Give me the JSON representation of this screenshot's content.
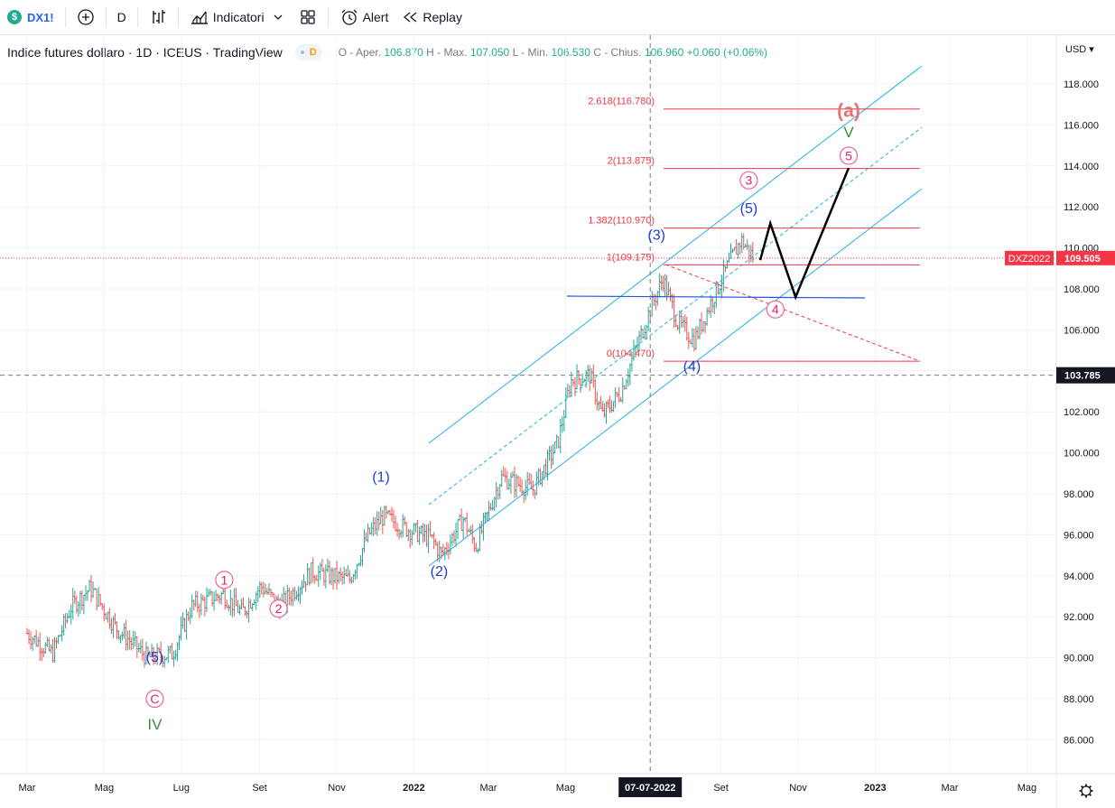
{
  "toolbar": {
    "symbol": "DX1!",
    "symbol_icon_text": "$",
    "interval": "D",
    "indicators_label": "Indicatori",
    "alert_label": "Alert",
    "replay_label": "Replay"
  },
  "legend": {
    "title": "Indice futures dollaro · 1D · ICEUS · TradingView",
    "interval_badge": "D",
    "open_label": "O - Aper.",
    "open": "106.870",
    "high_label": "H - Max.",
    "high": "107.050",
    "low_label": "L - Min.",
    "low": "106.530",
    "close_label": "C - Chius.",
    "close": "106.960",
    "change": "+0.060",
    "change_pct": "(+0.06%)"
  },
  "currency": "USD",
  "y_ticks": [
    "118.000",
    "116.000",
    "114.000",
    "112.000",
    "110.000",
    "108.000",
    "106.000",
    "104.000",
    "102.000",
    "100.000",
    "98.000",
    "96.000",
    "94.000",
    "92.000",
    "90.000",
    "88.000",
    "86.000"
  ],
  "y_tick_values": [
    118,
    116,
    114,
    112,
    110,
    108,
    106,
    104,
    102,
    100,
    98,
    96,
    94,
    92,
    90,
    88,
    86
  ],
  "x_ticks": [
    {
      "label": "Mar",
      "day": 0
    },
    {
      "label": "Mag",
      "day": 61
    },
    {
      "label": "Lug",
      "day": 122
    },
    {
      "label": "Set",
      "day": 184
    },
    {
      "label": "Nov",
      "day": 245
    },
    {
      "label": "2022",
      "day": 306
    },
    {
      "label": "Mar",
      "day": 365
    },
    {
      "label": "Mag",
      "day": 426
    },
    {
      "label": "Set",
      "day": 549
    },
    {
      "label": "Nov",
      "day": 610
    },
    {
      "label": "2023",
      "day": 671
    },
    {
      "label": "Mar",
      "day": 730
    },
    {
      "label": "Mag",
      "day": 791
    }
  ],
  "crosshair": {
    "date_label": "07-07-2022",
    "date_day": 493,
    "price_label": "103.785",
    "price": 103.785
  },
  "price_tag": {
    "name": "DXZ2022",
    "value": "109.505",
    "price": 109.505
  },
  "fib_levels": [
    {
      "label": "2.618(116.780)",
      "price": 116.78
    },
    {
      "label": "2(113.875)",
      "price": 113.875
    },
    {
      "label": "1.382(110.970)",
      "price": 110.97
    },
    {
      "label": "1(109.175)",
      "price": 109.175
    },
    {
      "label": "0(104.470)",
      "price": 104.47
    }
  ],
  "wave_labels": {
    "blue": [
      {
        "text": "(1)",
        "day": 280,
        "price": 98.6
      },
      {
        "text": "(2)",
        "day": 326,
        "price": 94.0
      },
      {
        "text": "(3)",
        "day": 498,
        "price": 110.4
      },
      {
        "text": "(4)",
        "day": 526,
        "price": 104.0
      },
      {
        "text": "(5)",
        "day": 571,
        "price": 111.7
      },
      {
        "text": "(5)",
        "day": 101,
        "price": 89.8
      }
    ],
    "pink": [
      {
        "text": "1",
        "day": 156,
        "price": 93.8
      },
      {
        "text": "2",
        "day": 199,
        "price": 92.4
      },
      {
        "text": "3",
        "day": 571,
        "price": 113.3
      },
      {
        "text": "4",
        "day": 592,
        "price": 107.0
      },
      {
        "text": "5",
        "day": 650,
        "price": 114.5
      },
      {
        "text": "C",
        "day": 101,
        "price": 88.0
      }
    ],
    "green": [
      {
        "text": "IV",
        "day": 101,
        "price": 86.5
      },
      {
        "text": "V",
        "day": 650,
        "price": 115.4
      }
    ],
    "red_big": [
      {
        "text": "(a)",
        "day": 650,
        "price": 116.4
      }
    ]
  },
  "colors": {
    "up": "#26a69a",
    "down": "#ef5350",
    "channel": "#22b1e6",
    "fib": "#f23645",
    "trend": "#1e53e5",
    "crosshair": "#787b86"
  },
  "chart_data": {
    "type": "candlestick",
    "title": "Indice futures dollaro",
    "series": [
      {
        "name": "DX1!",
        "approx_close_path": [
          {
            "day": 0,
            "price": 91.2
          },
          {
            "day": 20,
            "price": 90.2
          },
          {
            "day": 35,
            "price": 92.5
          },
          {
            "day": 50,
            "price": 93.4
          },
          {
            "day": 70,
            "price": 91.5
          },
          {
            "day": 95,
            "price": 90.0
          },
          {
            "day": 115,
            "price": 90.2
          },
          {
            "day": 130,
            "price": 92.5
          },
          {
            "day": 155,
            "price": 93.1
          },
          {
            "day": 170,
            "price": 92.2
          },
          {
            "day": 185,
            "price": 93.5
          },
          {
            "day": 200,
            "price": 92.5
          },
          {
            "day": 225,
            "price": 94.2
          },
          {
            "day": 255,
            "price": 93.8
          },
          {
            "day": 270,
            "price": 96.0
          },
          {
            "day": 282,
            "price": 96.9
          },
          {
            "day": 300,
            "price": 96.3
          },
          {
            "day": 320,
            "price": 95.8
          },
          {
            "day": 328,
            "price": 95.0
          },
          {
            "day": 345,
            "price": 96.8
          },
          {
            "day": 355,
            "price": 95.4
          },
          {
            "day": 375,
            "price": 98.8
          },
          {
            "day": 400,
            "price": 98.2
          },
          {
            "day": 420,
            "price": 100.5
          },
          {
            "day": 430,
            "price": 103.5
          },
          {
            "day": 445,
            "price": 103.8
          },
          {
            "day": 455,
            "price": 101.8
          },
          {
            "day": 470,
            "price": 103.0
          },
          {
            "day": 480,
            "price": 104.8
          },
          {
            "day": 493,
            "price": 107.0
          },
          {
            "day": 503,
            "price": 108.5
          },
          {
            "day": 515,
            "price": 106.3
          },
          {
            "day": 528,
            "price": 105.5
          },
          {
            "day": 540,
            "price": 107.2
          },
          {
            "day": 555,
            "price": 109.2
          },
          {
            "day": 565,
            "price": 110.4
          },
          {
            "day": 575,
            "price": 109.5
          }
        ]
      }
    ],
    "projection": [
      {
        "day": 580,
        "price": 109.4
      },
      {
        "day": 588,
        "price": 111.2
      },
      {
        "day": 608,
        "price": 107.6
      },
      {
        "day": 650,
        "price": 113.9
      }
    ],
    "ylim": [
      85,
      119.5
    ]
  }
}
